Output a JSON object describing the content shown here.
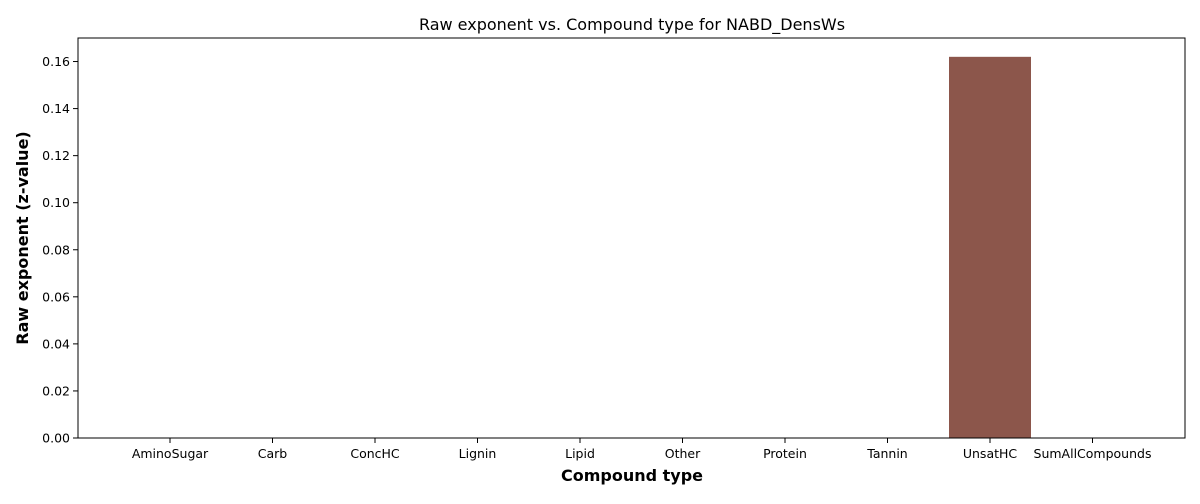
{
  "chart_data": {
    "type": "bar",
    "title": "Raw exponent vs. Compound type for NABD_DensWs",
    "xlabel": "Compound type",
    "ylabel": "Raw exponent (z-value)",
    "categories": [
      "AminoSugar",
      "Carb",
      "ConcHC",
      "Lignin",
      "Lipid",
      "Other",
      "Protein",
      "Tannin",
      "UnsatHC",
      "SumAllCompounds"
    ],
    "values": [
      0,
      0,
      0,
      0,
      0,
      0,
      0,
      0,
      0.162,
      0
    ],
    "ylim": [
      0,
      0.17
    ],
    "yticks": [
      0.0,
      0.02,
      0.04,
      0.06,
      0.08,
      0.1,
      0.12,
      0.14,
      0.16
    ],
    "ytick_labels": [
      "0.00",
      "0.02",
      "0.04",
      "0.06",
      "0.08",
      "0.10",
      "0.12",
      "0.14",
      "0.16"
    ],
    "bar_colors": [
      "#1f77b4",
      "#ff7f0e",
      "#2ca02c",
      "#d62728",
      "#9467bd",
      "#e377c2",
      "#7f7f7f",
      "#bcbd22",
      "#8c564b",
      "#17becf"
    ],
    "grid": false,
    "legend": "none"
  }
}
